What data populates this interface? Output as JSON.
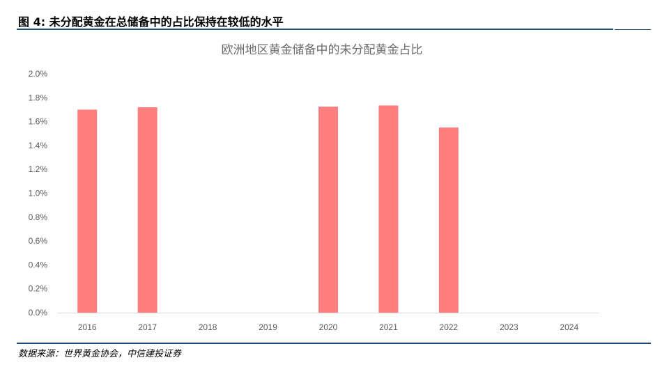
{
  "header": {
    "figure_title": "图 4: 未分配黄金在总储备中的占比保持在较低的水平"
  },
  "footer": {
    "source": "数据来源：世界黄金协会，中信建投证券"
  },
  "colors": {
    "bar": "#ff7f7f",
    "rule": "#1f4e79",
    "axis": "#d9d9d9"
  },
  "chart_data": {
    "type": "bar",
    "title": "欧洲地区黄金储备中的未分配黄金占比",
    "categories": [
      "2016",
      "2017",
      "2018",
      "2019",
      "2020",
      "2021",
      "2022",
      "2023",
      "2024"
    ],
    "values": [
      1.7,
      1.72,
      null,
      null,
      1.725,
      1.735,
      1.55,
      null,
      null
    ],
    "ylim": [
      0,
      2.0
    ],
    "yticks": [
      "0.0%",
      "0.2%",
      "0.4%",
      "0.6%",
      "0.8%",
      "1.0%",
      "1.2%",
      "1.4%",
      "1.6%",
      "1.8%",
      "2.0%"
    ],
    "value_unit": "%",
    "grid": false
  }
}
